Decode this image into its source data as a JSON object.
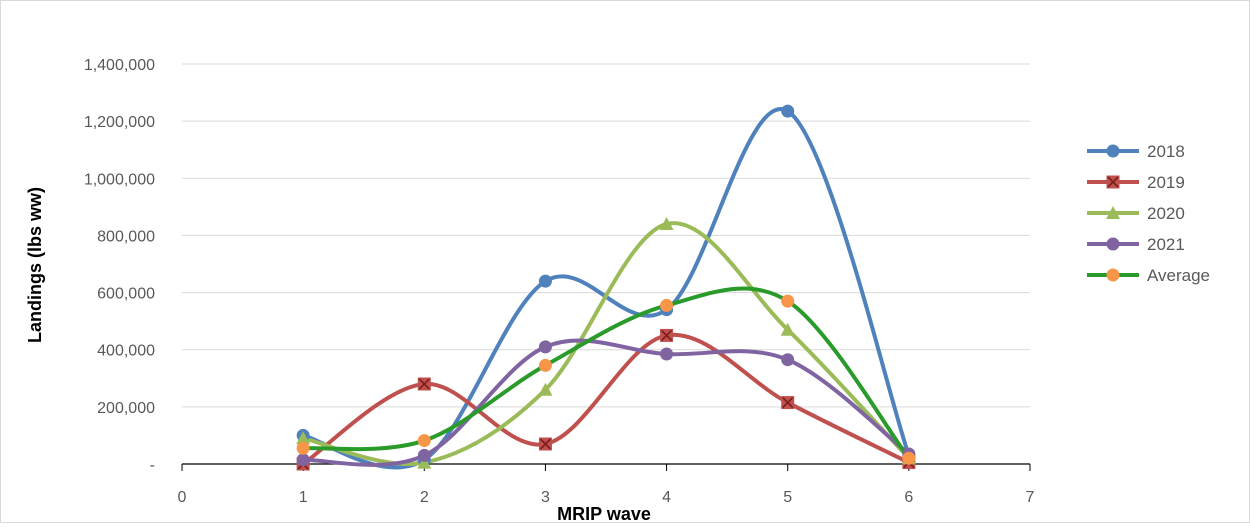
{
  "chart_data": {
    "type": "line",
    "title": "",
    "xlabel": "MRIP wave",
    "ylabel": "Landings (lbs ww)",
    "xlim": [
      0,
      7
    ],
    "ylim": [
      0,
      1400000
    ],
    "x_ticks": [
      0,
      1,
      2,
      3,
      4,
      5,
      6,
      7
    ],
    "y_ticks": [
      0,
      200000,
      400000,
      600000,
      800000,
      1000000,
      1200000,
      1400000
    ],
    "y_tick_labels": [
      "-",
      "200,000",
      "400,000",
      "600,000",
      "800,000",
      "1,000,000",
      "1,200,000",
      "1,400,000"
    ],
    "grid": "horizontal",
    "legend_position": "right",
    "smoothed": true,
    "x": [
      1,
      2,
      3,
      4,
      5,
      6
    ],
    "series": [
      {
        "name": "2018",
        "color": "#4f81bd",
        "marker": "circle",
        "marker_color": "#4f81bd",
        "values": [
          100000,
          15000,
          640000,
          540000,
          1235000,
          30000
        ]
      },
      {
        "name": "2019",
        "color": "#c0504d",
        "marker": "square-x",
        "marker_color": "#c0504d",
        "values": [
          0,
          280000,
          70000,
          450000,
          215000,
          5000
        ]
      },
      {
        "name": "2020",
        "color": "#9bbb59",
        "marker": "triangle",
        "marker_color": "#9bbb59",
        "values": [
          90000,
          5000,
          260000,
          840000,
          470000,
          20000
        ]
      },
      {
        "name": "2021",
        "color": "#8064a2",
        "marker": "circle",
        "marker_color": "#8064a2",
        "values": [
          15000,
          30000,
          410000,
          385000,
          365000,
          35000
        ]
      },
      {
        "name": "Average",
        "color": "#2a9b2a",
        "marker": "circle",
        "marker_color": "#f79646",
        "values": [
          55000,
          82000,
          345000,
          555000,
          570000,
          20000
        ]
      }
    ]
  }
}
